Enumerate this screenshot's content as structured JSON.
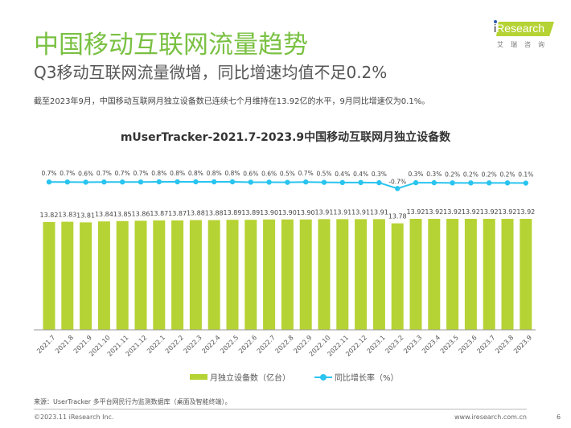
{
  "header": {
    "title": "中国移动互联网流量趋势",
    "subtitle": "Q3移动互联网流量微增，同比增速均值不足0.2%",
    "description": "截至2023年9月，中国移动互联网月独立设备数已连续七个月维持在13.92亿的水平，9月同比增速仅为0.1%。"
  },
  "logo": {
    "brand_i": "i",
    "brand_rest": "Research",
    "cn": "艾瑞咨询"
  },
  "colors": {
    "accent_green": "#7ac143",
    "bar_green": "#b5d334",
    "line_blue": "#29c4ef"
  },
  "chart_data": {
    "type": "bar",
    "title": "mUserTracker-2021.7-2023.9中国移动互联网月独立设备数",
    "categories": [
      "2021.7",
      "2021.8",
      "2021.9",
      "2021.10",
      "2021.11",
      "2021.12",
      "2022.1",
      "2022.2",
      "2022.3",
      "2022.4",
      "2022.5",
      "2022.6",
      "2022.7",
      "2022.8",
      "2022.9",
      "2022.10",
      "2022.11",
      "2022.12",
      "2023.1",
      "2023.2",
      "2023.3",
      "2023.4",
      "2023.5",
      "2023.6",
      "2023.7",
      "2023.8",
      "2023.9"
    ],
    "series": [
      {
        "name": "月独立设备数（亿台）",
        "type": "bar",
        "values": [
          13.82,
          13.83,
          13.81,
          13.84,
          13.85,
          13.86,
          13.87,
          13.87,
          13.88,
          13.88,
          13.89,
          13.89,
          13.9,
          13.9,
          13.9,
          13.91,
          13.91,
          13.91,
          13.91,
          13.78,
          13.92,
          13.92,
          13.92,
          13.92,
          13.92,
          13.92,
          13.92
        ],
        "labels": [
          "13.82",
          "13.83",
          "13.81",
          "13.84",
          "13.85",
          "13.86",
          "13.87",
          "13.87",
          "13.88",
          "13.88",
          "13.89",
          "13.89",
          "13.90",
          "13.90",
          "13.90",
          "13.91",
          "13.91",
          "13.91",
          "13.91",
          "13.78",
          "13.92",
          "13.92",
          "13.92",
          "13.92",
          "13.92",
          "13.92",
          "13.92"
        ]
      },
      {
        "name": "同比增长率（%）",
        "type": "line",
        "values": [
          0.7,
          0.7,
          0.6,
          0.7,
          0.7,
          0.7,
          0.8,
          0.8,
          0.8,
          0.8,
          0.8,
          0.6,
          0.6,
          0.5,
          0.7,
          0.5,
          0.4,
          0.4,
          0.3,
          -0.7,
          0.3,
          0.3,
          0.2,
          0.2,
          0.2,
          0.2,
          0.1
        ],
        "labels": [
          "0.7%",
          "0.7%",
          "0.6%",
          "0.7%",
          "0.7%",
          "0.7%",
          "0.8%",
          "0.8%",
          "0.8%",
          "0.8%",
          "0.8%",
          "0.6%",
          "0.6%",
          "0.5%",
          "0.7%",
          "0.5%",
          "0.4%",
          "0.4%",
          "0.3%",
          "-0.7%",
          "0.3%",
          "0.3%",
          "0.2%",
          "0.2%",
          "0.2%",
          "0.2%",
          "0.1%"
        ]
      }
    ],
    "xlabel": "",
    "ylabel": "",
    "grid": false,
    "legend": "bottom-center"
  },
  "legend": {
    "bar_label": "月独立设备数（亿台）",
    "line_label": "同比增长率（%）"
  },
  "footer": {
    "source": "来源：UserTracker 多平台网民行为监测数据库（桌面及智能终端）。",
    "copyright": "©2023.11 iResearch Inc.",
    "website": "www.iresearch.com.cn",
    "page": "6"
  }
}
